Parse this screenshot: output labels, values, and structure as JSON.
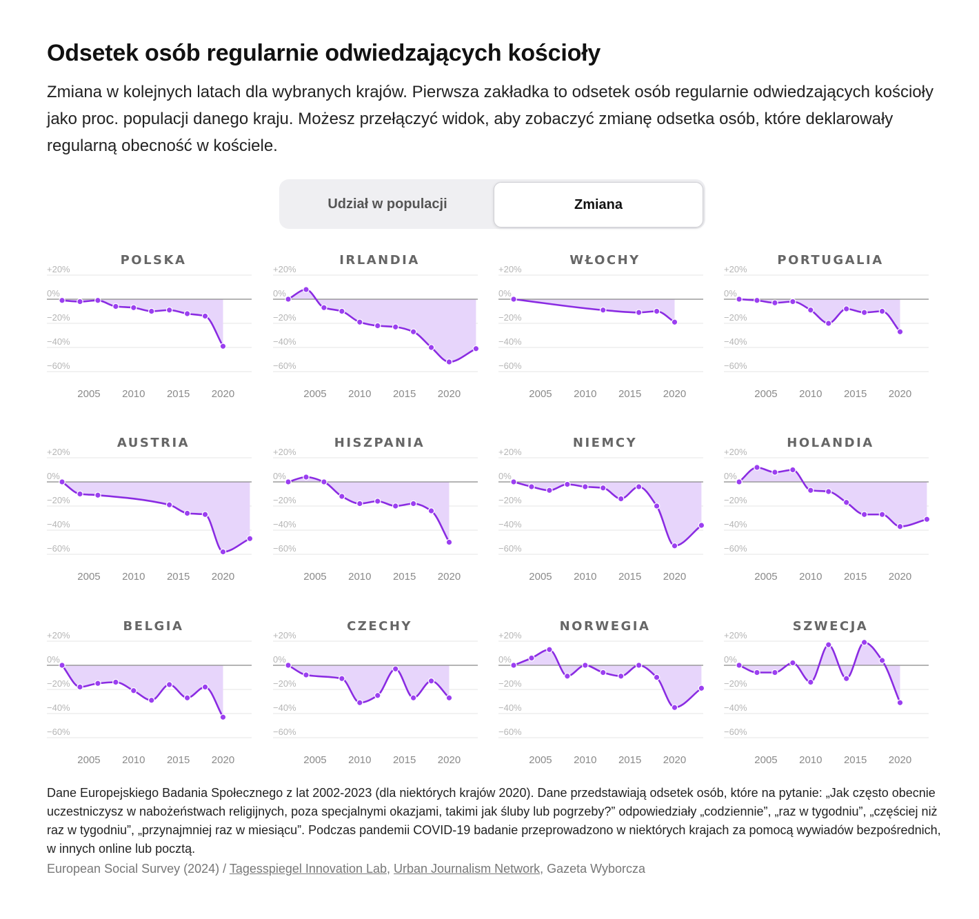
{
  "title": "Odsetek osób regularnie odwiedzających kościoły",
  "subtitle": "Zmiana w kolejnych latach dla wybranych krajów. Pierwsza zakładka to odsetek osób regularnie odwiedzających kościoły jako proc. populacji danego kraju. Możesz przełączyć widok, aby zobaczyć zmianę odsetka osób, które deklarowały regularną obecność w kościele.",
  "toggle": {
    "option1": "Udział w populacji",
    "option2": "Zmiana"
  },
  "colors": {
    "line": "#8a2be2",
    "area": "#e7d5fb",
    "dot": "#9b3ff0",
    "zero": "#888888",
    "grid": "#e6e6e6"
  },
  "notes": "Dane Europejskiego Badania Społecznego z lat 2002-2023 (dla niektórych krajów 2020). Dane przedstawiają odsetek osób, które na pytanie: „Jak często obecnie uczestniczysz w nabożeństwach religijnych, poza specjalnymi okazjami, takimi jak śluby lub pogrzeby?” odpowiedziały „codziennie”, „raz w tygodniu”, „częściej niż raz w tygodniu”, „przynajmniej raz w miesiącu”. Podczas pandemii COVID-19 badanie przeprowadzono w niektórych krajach za pomocą wywiadów bezpośrednich, w innych online lub pocztą.",
  "source": {
    "part1": "European Social Survey (2024) / ",
    "link1": "Tagesspiegel Innovation Lab",
    "sep": ", ",
    "link2": "Urban Journalism Network",
    "part2": ", Gazeta Wyborcza"
  },
  "chart_data": [
    {
      "type": "line",
      "title": "POLSKA",
      "ylim": [
        -60,
        20
      ],
      "yticks": [
        "+20%",
        "0%",
        "−20%",
        "−40%",
        "−60%"
      ],
      "xticks": [
        2005,
        2010,
        2015,
        2020
      ],
      "x": [
        2002,
        2004,
        2006,
        2008,
        2010,
        2012,
        2014,
        2016,
        2018,
        2020
      ],
      "y": [
        -1,
        -2,
        -1,
        -6,
        -7,
        -10,
        -9,
        -12,
        -14,
        -39
      ]
    },
    {
      "type": "line",
      "title": "IRLANDIA",
      "ylim": [
        -60,
        20
      ],
      "yticks": [
        "+20%",
        "0%",
        "−20%",
        "−40%",
        "−60%"
      ],
      "xticks": [
        2005,
        2010,
        2015,
        2020
      ],
      "x": [
        2002,
        2004,
        2006,
        2008,
        2010,
        2012,
        2014,
        2016,
        2018,
        2020,
        2023
      ],
      "y": [
        0,
        8,
        -7,
        -10,
        -19,
        -22,
        -23,
        -27,
        -40,
        -52,
        -41
      ]
    },
    {
      "type": "line",
      "title": "WŁOCHY",
      "ylim": [
        -60,
        20
      ],
      "yticks": [
        "+20%",
        "0%",
        "−20%",
        "−40%",
        "−60%"
      ],
      "xticks": [
        2005,
        2010,
        2015,
        2020
      ],
      "x": [
        2002,
        2012,
        2016,
        2018,
        2020
      ],
      "y": [
        0,
        -9,
        -11,
        -10,
        -19
      ]
    },
    {
      "type": "line",
      "title": "PORTUGALIA",
      "ylim": [
        -60,
        20
      ],
      "yticks": [
        "+20%",
        "0%",
        "−20%",
        "−40%",
        "−60%"
      ],
      "xticks": [
        2005,
        2010,
        2015,
        2020
      ],
      "x": [
        2002,
        2004,
        2006,
        2008,
        2010,
        2012,
        2014,
        2016,
        2018,
        2020
      ],
      "y": [
        0,
        -1,
        -3,
        -2,
        -9,
        -20,
        -8,
        -11,
        -10,
        -27
      ]
    },
    {
      "type": "line",
      "title": "AUSTRIA",
      "ylim": [
        -60,
        20
      ],
      "yticks": [
        "+20%",
        "0%",
        "−20%",
        "−40%",
        "−60%"
      ],
      "xticks": [
        2005,
        2010,
        2015,
        2020
      ],
      "x": [
        2002,
        2004,
        2006,
        2014,
        2016,
        2018,
        2020,
        2023
      ],
      "y": [
        0,
        -10,
        -11,
        -19,
        -26,
        -27,
        -58,
        -47
      ]
    },
    {
      "type": "line",
      "title": "HISZPANIA",
      "ylim": [
        -60,
        20
      ],
      "yticks": [
        "+20%",
        "0%",
        "−20%",
        "−40%",
        "−60%"
      ],
      "xticks": [
        2005,
        2010,
        2015,
        2020
      ],
      "x": [
        2002,
        2004,
        2006,
        2008,
        2010,
        2012,
        2014,
        2016,
        2018,
        2020
      ],
      "y": [
        0,
        4,
        0,
        -12,
        -18,
        -16,
        -20,
        -18,
        -24,
        -50
      ]
    },
    {
      "type": "line",
      "title": "NIEMCY",
      "ylim": [
        -60,
        20
      ],
      "yticks": [
        "+20%",
        "0%",
        "−20%",
        "−40%",
        "−60%"
      ],
      "xticks": [
        2005,
        2010,
        2015,
        2020
      ],
      "x": [
        2002,
        2004,
        2006,
        2008,
        2010,
        2012,
        2014,
        2016,
        2018,
        2020,
        2023
      ],
      "y": [
        0,
        -4,
        -7,
        -2,
        -4,
        -5,
        -14,
        -4,
        -20,
        -53,
        -36
      ]
    },
    {
      "type": "line",
      "title": "HOLANDIA",
      "ylim": [
        -60,
        20
      ],
      "yticks": [
        "+20%",
        "0%",
        "−20%",
        "−40%",
        "−60%"
      ],
      "xticks": [
        2005,
        2010,
        2015,
        2020
      ],
      "x": [
        2002,
        2004,
        2006,
        2008,
        2010,
        2012,
        2014,
        2016,
        2018,
        2020,
        2023
      ],
      "y": [
        0,
        12,
        8,
        10,
        -7,
        -8,
        -17,
        -27,
        -27,
        -37,
        -31
      ]
    },
    {
      "type": "line",
      "title": "BELGIA",
      "ylim": [
        -60,
        20
      ],
      "yticks": [
        "+20%",
        "0%",
        "−20%",
        "−40%",
        "−60%"
      ],
      "xticks": [
        2005,
        2010,
        2015,
        2020
      ],
      "x": [
        2002,
        2004,
        2006,
        2008,
        2010,
        2012,
        2014,
        2016,
        2018,
        2020
      ],
      "y": [
        0,
        -18,
        -15,
        -14,
        -21,
        -29,
        -16,
        -27,
        -18,
        -43
      ]
    },
    {
      "type": "line",
      "title": "CZECHY",
      "ylim": [
        -60,
        20
      ],
      "yticks": [
        "+20%",
        "0%",
        "−20%",
        "−40%",
        "−60%"
      ],
      "xticks": [
        2005,
        2010,
        2015,
        2020
      ],
      "x": [
        2002,
        2004,
        2008,
        2010,
        2012,
        2014,
        2016,
        2018,
        2020
      ],
      "y": [
        0,
        -8,
        -11,
        -31,
        -25,
        -3,
        -27,
        -13,
        -27
      ]
    },
    {
      "type": "line",
      "title": "NORWEGIA",
      "ylim": [
        -60,
        20
      ],
      "yticks": [
        "+20%",
        "0%",
        "−20%",
        "−40%",
        "−60%"
      ],
      "xticks": [
        2005,
        2010,
        2015,
        2020
      ],
      "x": [
        2002,
        2004,
        2006,
        2008,
        2010,
        2012,
        2014,
        2016,
        2018,
        2020,
        2023
      ],
      "y": [
        0,
        6,
        13,
        -9,
        0,
        -6,
        -9,
        0,
        -10,
        -35,
        -19
      ]
    },
    {
      "type": "line",
      "title": "SZWECJA",
      "ylim": [
        -60,
        20
      ],
      "yticks": [
        "+20%",
        "0%",
        "−20%",
        "−40%",
        "−60%"
      ],
      "xticks": [
        2005,
        2010,
        2015,
        2020
      ],
      "x": [
        2002,
        2004,
        2006,
        2008,
        2010,
        2012,
        2014,
        2016,
        2018,
        2020
      ],
      "y": [
        0,
        -6,
        -6,
        2,
        -14,
        17,
        -11,
        19,
        4,
        -31
      ]
    }
  ]
}
